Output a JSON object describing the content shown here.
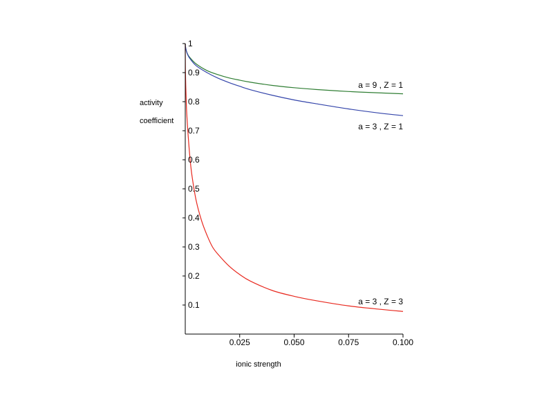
{
  "chart_data": {
    "type": "line",
    "title": "",
    "xlabel": "ionic strength",
    "ylabel_lines": [
      "activity",
      "coefficient"
    ],
    "xlim": [
      0,
      0.1
    ],
    "ylim": [
      0,
      1
    ],
    "x_ticks": [
      {
        "value": 0.025,
        "label": "0.025"
      },
      {
        "value": 0.05,
        "label": "0.050"
      },
      {
        "value": 0.075,
        "label": "0.075"
      },
      {
        "value": 0.1,
        "label": "0.100"
      }
    ],
    "y_ticks": [
      {
        "value": 0.1,
        "label": "0.1"
      },
      {
        "value": 0.2,
        "label": "0.2"
      },
      {
        "value": 0.3,
        "label": "0.3"
      },
      {
        "value": 0.4,
        "label": "0.4"
      },
      {
        "value": 0.5,
        "label": "0.5"
      },
      {
        "value": 0.6,
        "label": "0.6"
      },
      {
        "value": 0.7,
        "label": "0.7"
      },
      {
        "value": 0.8,
        "label": "0.8"
      },
      {
        "value": 0.9,
        "label": "0.9"
      },
      {
        "value": 1.0,
        "label": "1"
      }
    ],
    "grid": false,
    "series": [
      {
        "name": "a = 9 , Z = 1",
        "color": "#2e7d32",
        "x": [
          0,
          0.0001,
          0.0005,
          0.001,
          0.002,
          0.005,
          0.01,
          0.015,
          0.02,
          0.025,
          0.03,
          0.04,
          0.05,
          0.06,
          0.075,
          0.09,
          0.1
        ],
        "y": [
          1.0,
          0.989,
          0.975,
          0.965,
          0.953,
          0.93,
          0.907,
          0.893,
          0.882,
          0.874,
          0.867,
          0.856,
          0.848,
          0.842,
          0.835,
          0.83,
          0.827
        ]
      },
      {
        "name": "a = 3 , Z = 1",
        "color": "#3344aa",
        "x": [
          0,
          0.0001,
          0.0005,
          0.001,
          0.002,
          0.005,
          0.01,
          0.015,
          0.02,
          0.025,
          0.03,
          0.04,
          0.05,
          0.06,
          0.075,
          0.09,
          0.1
        ],
        "y": [
          1.0,
          0.989,
          0.975,
          0.964,
          0.95,
          0.924,
          0.9,
          0.881,
          0.866,
          0.853,
          0.841,
          0.822,
          0.806,
          0.793,
          0.775,
          0.76,
          0.752
        ]
      },
      {
        "name": "a = 3 , Z = 3",
        "color": "#e8281e",
        "x": [
          0,
          0.0001,
          0.0005,
          0.001,
          0.002,
          0.003,
          0.005,
          0.0075,
          0.01,
          0.0125,
          0.015,
          0.02,
          0.025,
          0.03,
          0.04,
          0.05,
          0.06,
          0.075,
          0.09,
          0.1
        ],
        "y": [
          1.0,
          0.9,
          0.79,
          0.72,
          0.62,
          0.55,
          0.46,
          0.39,
          0.34,
          0.3,
          0.275,
          0.235,
          0.205,
          0.182,
          0.15,
          0.13,
          0.115,
          0.097,
          0.085,
          0.078
        ]
      }
    ]
  }
}
